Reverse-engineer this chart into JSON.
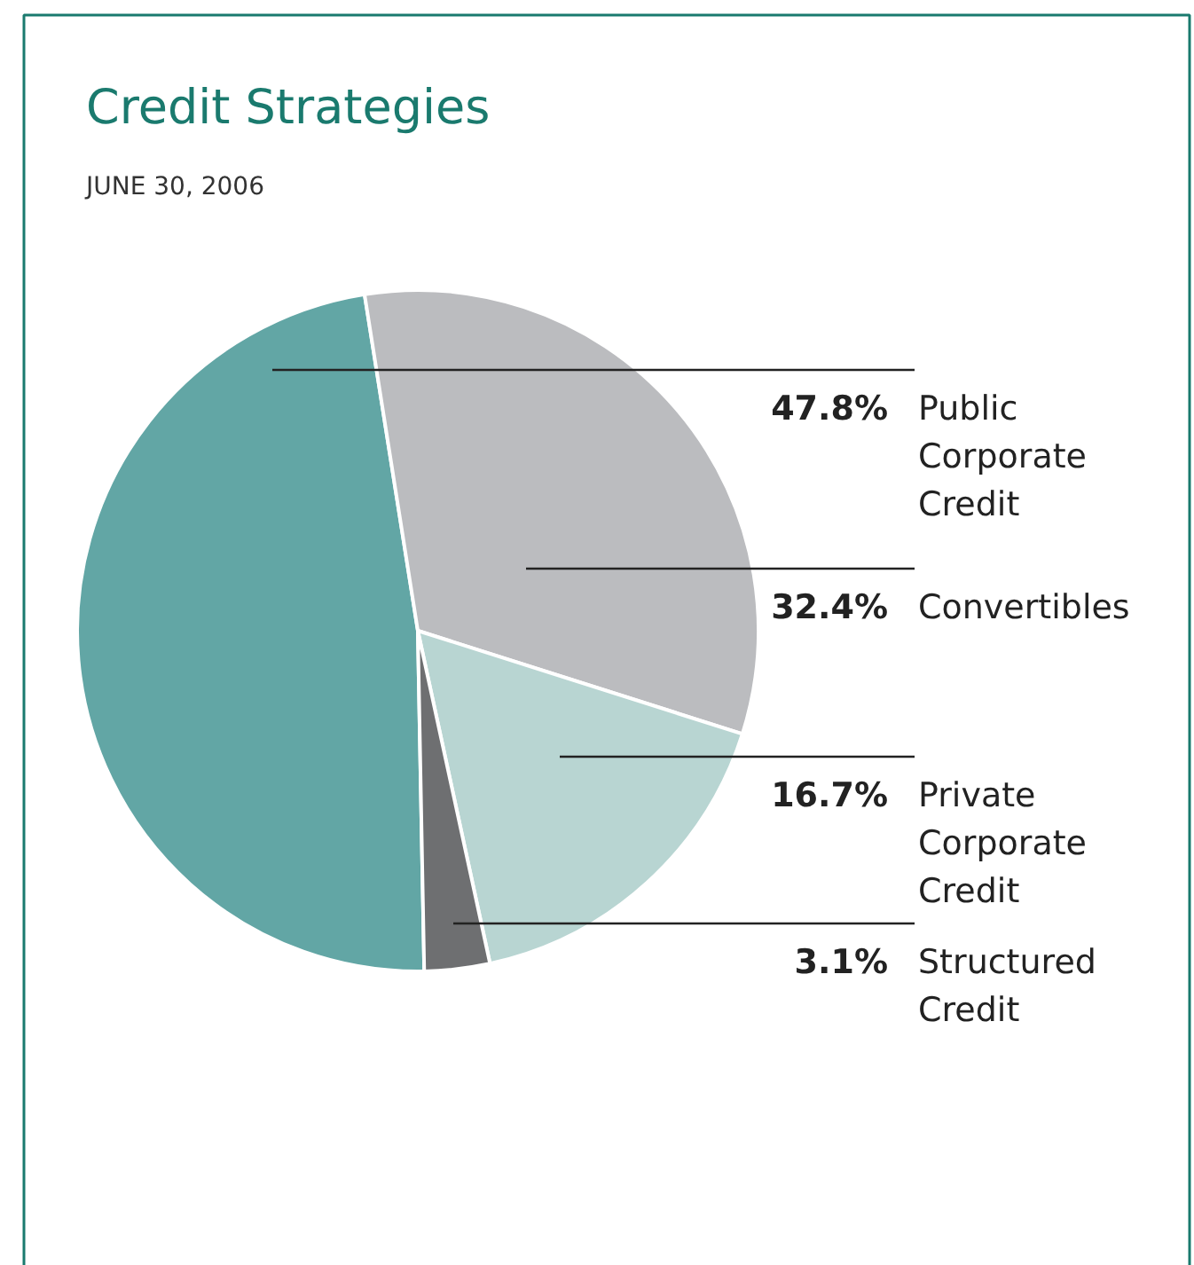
{
  "chart_data": {
    "type": "pie",
    "title": "Credit Strategies",
    "subtitle": "JUNE 30, 2006",
    "categories": [
      "Public Corporate Credit",
      "Convertibles",
      "Private Corporate Credit",
      "Structured Credit"
    ],
    "values": [
      47.8,
      32.4,
      16.7,
      3.1
    ],
    "colors": [
      "#62a6a5",
      "#bbbcbf",
      "#b8d5d2",
      "#6e6f71"
    ],
    "value_labels": [
      "47.8%",
      "32.4%",
      "16.7%",
      "3.1%"
    ]
  }
}
